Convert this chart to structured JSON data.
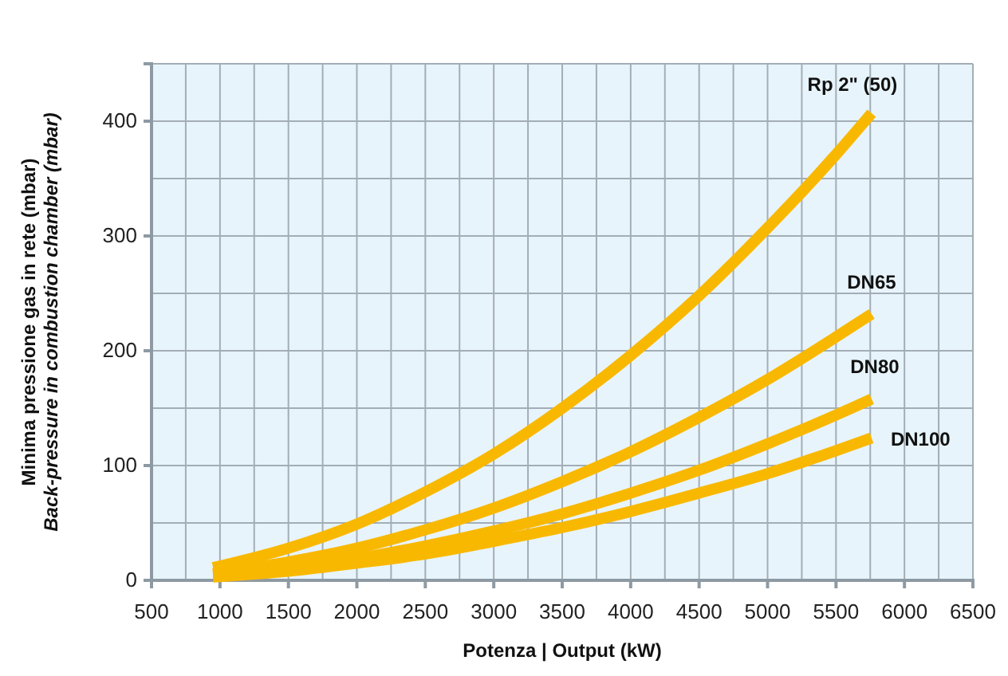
{
  "chart_data": {
    "type": "line",
    "xlabel": "Potenza | Output (kW)",
    "ylabel": "Minima pressione gas in rete (mbar)\nBack-pressure in combustion chamber (mbar)",
    "x": [
      950,
      1500,
      2000,
      2500,
      3000,
      3500,
      4000,
      4500,
      5000,
      5500,
      5760
    ],
    "series": [
      {
        "name": "Rp 2\" (50)",
        "color": "#f9b800",
        "values": [
          11,
          28,
          49,
          77,
          110,
          150,
          196,
          248,
          307,
          371,
          407
        ]
      },
      {
        "name": "DN65",
        "color": "#f9b800",
        "values": [
          6,
          16,
          28,
          44,
          63,
          86,
          112,
          142,
          175,
          212,
          232
        ]
      },
      {
        "name": "DN80",
        "color": "#f9b800",
        "values": [
          4,
          11,
          19,
          30,
          43,
          58,
          76,
          96,
          119,
          144,
          158
        ]
      },
      {
        "name": "DN100",
        "color": "#f9b800",
        "values": [
          3,
          8,
          15,
          23,
          34,
          46,
          60,
          76,
          93,
          113,
          124
        ]
      }
    ],
    "xlim": [
      500,
      6500
    ],
    "xticks": [
      500,
      1000,
      1500,
      2000,
      2500,
      3000,
      3500,
      4000,
      4500,
      5000,
      5500,
      6000,
      6500
    ],
    "ylim": [
      0,
      450
    ],
    "yticks": [
      0,
      100,
      200,
      300,
      400
    ],
    "grid": true,
    "marker": "none",
    "line_style": "solid",
    "legend": false
  }
}
